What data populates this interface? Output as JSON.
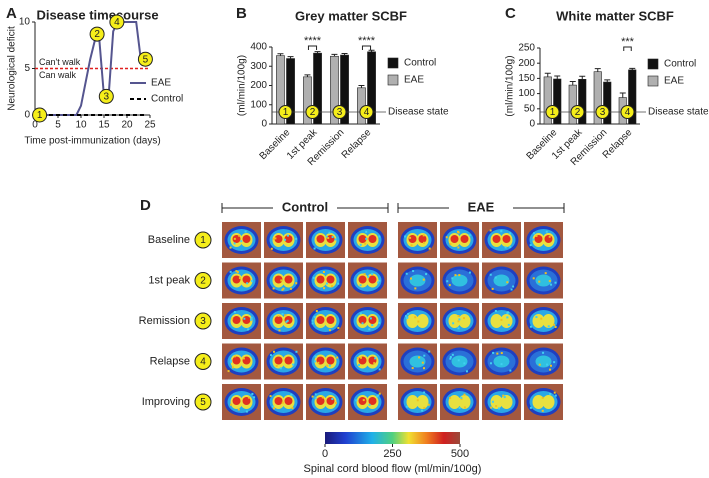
{
  "chart_data": [
    {
      "type": "line",
      "panel_label": "A",
      "title": "Disease timecourse",
      "x_label": "Time post-immunization (days)",
      "y_label": "Neurological deficit",
      "series": [
        {
          "name": "EAE",
          "color": "#55558f",
          "dash": false,
          "x": [
            0,
            9,
            10,
            12,
            13,
            14,
            15,
            16,
            17,
            18,
            22,
            23,
            24
          ],
          "values": [
            0,
            0,
            1,
            6,
            8,
            8,
            2,
            2,
            9,
            10,
            10,
            6,
            6
          ]
        },
        {
          "name": "Control",
          "color": "#000000",
          "dash": true,
          "x": [
            0,
            24
          ],
          "values": [
            0,
            0
          ]
        }
      ],
      "threshold": {
        "value": 5,
        "color": "#e02020",
        "label_above": "Can't walk",
        "label_below": "Can walk"
      },
      "markers": [
        {
          "label": "1",
          "x": 1,
          "y": 0
        },
        {
          "label": "2",
          "x": 13.5,
          "y": 8.7
        },
        {
          "label": "3",
          "x": 15.5,
          "y": 2
        },
        {
          "label": "4",
          "x": 17.8,
          "y": 10
        },
        {
          "label": "5",
          "x": 24,
          "y": 6
        }
      ],
      "xlim": [
        0,
        25
      ],
      "xticks": [
        0,
        5,
        10,
        15,
        20,
        25
      ],
      "ylim": [
        0,
        10
      ],
      "yticks": [
        0,
        5,
        10
      ]
    },
    {
      "type": "bar",
      "panel_label": "B",
      "title": "Grey matter SCBF",
      "y_label": "(ml/min/100g)",
      "categories": [
        "Baseline",
        "1st peak",
        "Remission",
        "Relapse"
      ],
      "series": [
        {
          "name": "Control",
          "color": "#111111",
          "values": [
            340,
            368,
            358,
            375
          ],
          "errors": [
            10,
            8,
            8,
            8
          ]
        },
        {
          "name": "EAE",
          "color": "#b0b0b0",
          "values": [
            355,
            245,
            352,
            188
          ],
          "errors": [
            10,
            10,
            10,
            12
          ]
        }
      ],
      "significance": [
        {
          "category": "1st peak",
          "label": "****"
        },
        {
          "category": "Relapse",
          "label": "****"
        }
      ],
      "disease_state": {
        "label": "Disease state",
        "markers": [
          "1",
          "2",
          "3",
          "4"
        ]
      },
      "ylim": [
        0,
        400
      ],
      "yticks": [
        0,
        100,
        200,
        300,
        400
      ]
    },
    {
      "type": "bar",
      "panel_label": "C",
      "title": "White matter SCBF",
      "y_label": "(ml/min/100g)",
      "categories": [
        "Baseline",
        "1st peak",
        "Remission",
        "Relapse"
      ],
      "series": [
        {
          "name": "Control",
          "color": "#111111",
          "values": [
            148,
            147,
            138,
            178
          ],
          "errors": [
            10,
            10,
            7,
            5
          ]
        },
        {
          "name": "EAE",
          "color": "#b0b0b0",
          "values": [
            155,
            128,
            172,
            87
          ],
          "errors": [
            12,
            12,
            10,
            15
          ]
        }
      ],
      "significance": [
        {
          "category": "Relapse",
          "label": "***"
        }
      ],
      "disease_state": {
        "label": "Disease state",
        "markers": [
          "1",
          "2",
          "3",
          "4"
        ]
      },
      "ylim": [
        0,
        250
      ],
      "yticks": [
        0,
        50,
        100,
        150,
        200,
        250
      ]
    }
  ],
  "panel_d": {
    "label": "D",
    "groups": [
      "Control",
      "EAE"
    ],
    "rows": [
      {
        "name": "Baseline",
        "marker": "1"
      },
      {
        "name": "1st peak",
        "marker": "2"
      },
      {
        "name": "Remission",
        "marker": "3"
      },
      {
        "name": "Relapse",
        "marker": "4"
      },
      {
        "name": "Improving",
        "marker": "5"
      }
    ],
    "colorbar": {
      "lim": [
        0,
        500
      ],
      "ticks": [
        0,
        250,
        500
      ],
      "label": "Spinal cord blood flow (ml/min/100g)"
    }
  }
}
